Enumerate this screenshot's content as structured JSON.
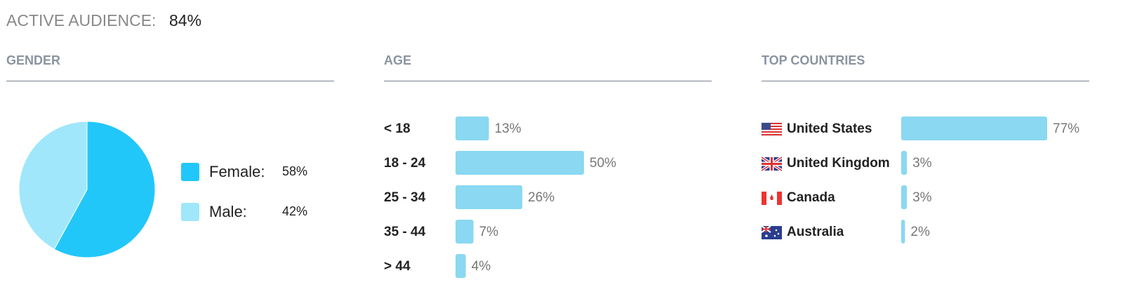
{
  "header": {
    "label": "ACTIVE AUDIENCE:",
    "value": "84%"
  },
  "chart_data": [
    {
      "type": "pie",
      "title": "GENDER",
      "categories": [
        "Female:",
        "Male:"
      ],
      "values": [
        58,
        42
      ],
      "value_labels": [
        "58%",
        "42%"
      ],
      "colors": [
        "#22c7f9",
        "#a0e7fb"
      ]
    },
    {
      "type": "barh",
      "title": "AGE",
      "categories": [
        "< 18",
        "18 - 24",
        "25 - 34",
        "35 - 44",
        "> 44"
      ],
      "values": [
        13,
        50,
        26,
        7,
        4
      ],
      "value_labels": [
        "13%",
        "50%",
        "26%",
        "7%",
        "4%"
      ],
      "color": "#8ad8f1"
    },
    {
      "type": "barh",
      "title": "TOP COUNTRIES",
      "categories": [
        "United States",
        "United Kingdom",
        "Canada",
        "Australia"
      ],
      "values": [
        77,
        3,
        3,
        2
      ],
      "value_labels": [
        "77%",
        "3%",
        "3%",
        "2%"
      ],
      "color": "#8ad8f1"
    }
  ]
}
